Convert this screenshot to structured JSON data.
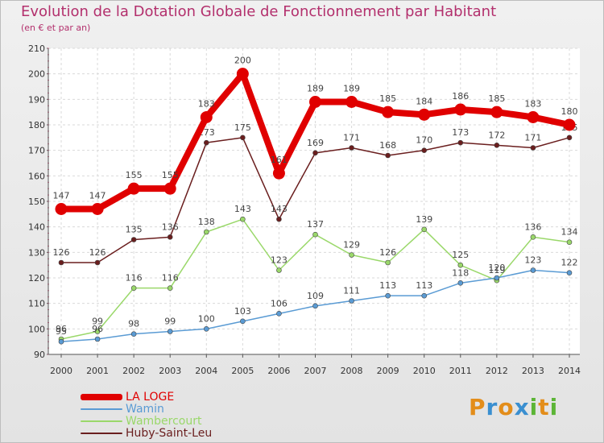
{
  "title": "Evolution de la Dotation Globale de Fonctionnement par Habitant",
  "subtitle": "(en € et par an)",
  "logo": {
    "letters": [
      "P",
      "r",
      "o",
      "x",
      "i",
      "t",
      "i"
    ],
    "colors": [
      "#e38d1a",
      "#3a8fd0",
      "#e38d1a",
      "#3a8fd0",
      "#5cb536",
      "#e38d1a",
      "#5cb536"
    ]
  },
  "chart_data": {
    "type": "line",
    "x": [
      "2000",
      "2001",
      "2002",
      "2003",
      "2004",
      "2005",
      "2006",
      "2007",
      "2008",
      "2009",
      "2010",
      "2011",
      "2012",
      "2013",
      "2014"
    ],
    "ylim": [
      90,
      210
    ],
    "yticks": [
      90,
      100,
      110,
      120,
      130,
      140,
      150,
      160,
      170,
      180,
      190,
      200,
      210
    ],
    "grid": true,
    "legend_position": "bottom-left",
    "series": [
      {
        "name": "LA LOGE",
        "color": "#e00000",
        "values": [
          147,
          147,
          155,
          155,
          183,
          200,
          161,
          189,
          189,
          185,
          184,
          186,
          185,
          183,
          180
        ]
      },
      {
        "name": "Wamin",
        "color": "#5a9bd4",
        "values": [
          95,
          96,
          98,
          99,
          100,
          103,
          106,
          109,
          111,
          113,
          113,
          118,
          120,
          123,
          122
        ]
      },
      {
        "name": "Wambercourt",
        "color": "#9ad86a",
        "values": [
          96,
          99,
          116,
          116,
          138,
          143,
          123,
          137,
          129,
          126,
          139,
          125,
          119,
          136,
          134
        ]
      },
      {
        "name": "Huby-Saint-Leu",
        "color": "#6a1e1e",
        "values": [
          126,
          126,
          135,
          136,
          173,
          175,
          143,
          169,
          171,
          168,
          170,
          173,
          172,
          171,
          175
        ]
      }
    ]
  }
}
